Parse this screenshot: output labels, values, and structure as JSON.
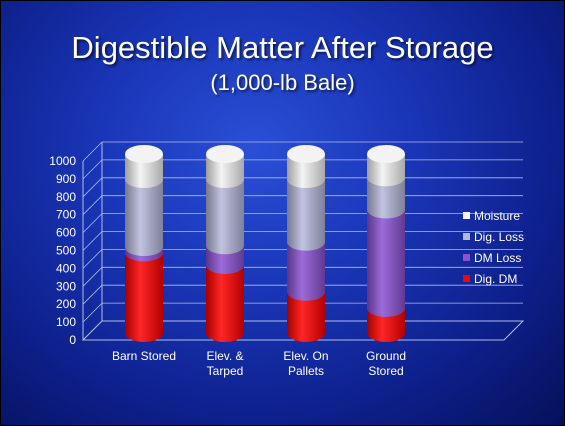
{
  "title": "Digestible Matter After Storage",
  "subtitle": "(1,000-lb Bale)",
  "colors": {
    "moisture": "#f2f2f2",
    "dig_loss": "#b6b8da",
    "dm_loss": "#8a52d2",
    "dig_dm": "#ff0000"
  },
  "chart_data": {
    "type": "bar",
    "stacked": true,
    "title": "Digestible Matter After Storage",
    "subtitle": "(1,000-lb Bale)",
    "categories": [
      [
        "Barn Stored"
      ],
      [
        "Elev. &",
        "Tarped"
      ],
      [
        "Elev. On",
        "Pallets"
      ],
      [
        "Ground",
        "Stored"
      ]
    ],
    "series": [
      {
        "name": "Dig. DM",
        "color": "#ff0000",
        "values": [
          450,
          380,
          230,
          140
        ]
      },
      {
        "name": "DM Loss",
        "color": "#8a52d2",
        "values": [
          30,
          110,
          280,
          550
        ]
      },
      {
        "name": "Dig. Loss",
        "color": "#b6b8da",
        "values": [
          380,
          370,
          350,
          180
        ]
      },
      {
        "name": "Moisture",
        "color": "#f2f2f2",
        "values": [
          140,
          140,
          140,
          130
        ]
      }
    ],
    "legend_order": [
      "Moisture",
      "Dig. Loss",
      "DM Loss",
      "Dig. DM"
    ],
    "ylim": [
      0,
      1000
    ],
    "yticks": [
      0,
      100,
      200,
      300,
      400,
      500,
      600,
      700,
      800,
      900,
      1000
    ],
    "grid": true,
    "legend_position": "right"
  }
}
